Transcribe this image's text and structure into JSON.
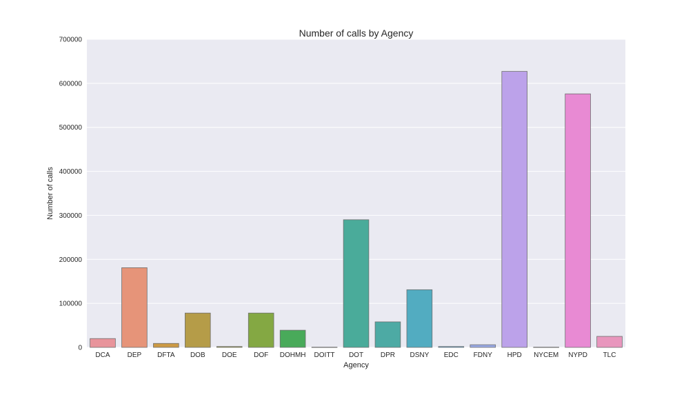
{
  "chart_data": {
    "type": "bar",
    "title": "Number of calls by Agency",
    "xlabel": "Agency",
    "ylabel": "Number of calls",
    "ylim": [
      0,
      700000
    ],
    "yticks": [
      "0",
      "100000",
      "200000",
      "300000",
      "400000",
      "500000",
      "600000",
      "700000"
    ],
    "ytick_values": [
      0,
      100000,
      200000,
      300000,
      400000,
      500000,
      600000,
      700000
    ],
    "grid": true,
    "categories": [
      "DCA",
      "DEP",
      "DFTA",
      "DOB",
      "DOE",
      "DOF",
      "DOHMH",
      "DOITT",
      "DOT",
      "DPR",
      "DSNY",
      "EDC",
      "FDNY",
      "HPD",
      "NYCEM",
      "NYPD",
      "TLC"
    ],
    "values": [
      20000,
      181000,
      9000,
      78000,
      2000,
      78000,
      39000,
      500,
      290000,
      58000,
      131000,
      2000,
      6000,
      627000,
      500,
      576000,
      25000
    ],
    "colors": [
      "#e8949b",
      "#e69479",
      "#cc9a45",
      "#b59c48",
      "#a2a245",
      "#84a843",
      "#49aa5a",
      "#4daa86",
      "#4aab9a",
      "#4daaa4",
      "#52acc1",
      "#5aa9da",
      "#9aaae6",
      "#bca2ea",
      "#d896e8",
      "#e88ad3",
      "#e896bd"
    ],
    "background": "#eaeaf2"
  }
}
